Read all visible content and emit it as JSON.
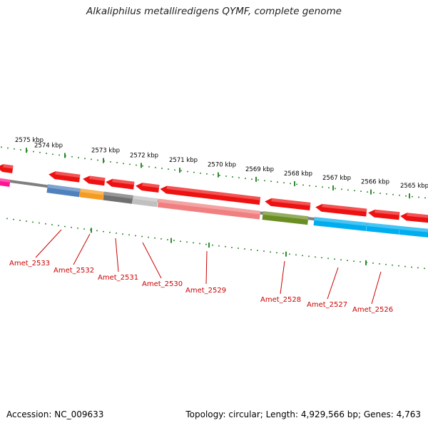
{
  "title": "Alkaliphilus metalliredigens QYMF, complete genome",
  "footer": {
    "accession": "Accession: NC_009633",
    "summary": "Topology: circular; Length: 4,929,566 bp; Genes: 4,763"
  },
  "ruler": {
    "kbp_labels": [
      "2575 kbp",
      "2574 kbp",
      "2573 kbp",
      "2572 kbp",
      "2571 kbp",
      "2570 kbp",
      "2569 kbp",
      "2568 kbp",
      "2567 kbp",
      "2566 kbp",
      "2565 kbp"
    ]
  },
  "genes": [
    {
      "name": "Amet_2533",
      "color": "#4f81bd"
    },
    {
      "name": "Amet_2532",
      "color": "#f59b1f"
    },
    {
      "name": "Amet_2531",
      "color": "#707070"
    },
    {
      "name": "Amet_2530",
      "color": "#c0c0c0"
    },
    {
      "name": "Amet_2529",
      "color": "#f08080"
    },
    {
      "name": "Amet_2528",
      "color": "#6b8e23"
    },
    {
      "name": "Amet_2527",
      "color": "#00aeef"
    },
    {
      "name": "Amet_2526",
      "color": "#00aeef"
    }
  ],
  "colors": {
    "cds": "#ee1111",
    "backbone": "#7f7f7f",
    "tick": "#2e8b2e",
    "label": "#cc0000",
    "magenta_feature": "#ff1493"
  }
}
